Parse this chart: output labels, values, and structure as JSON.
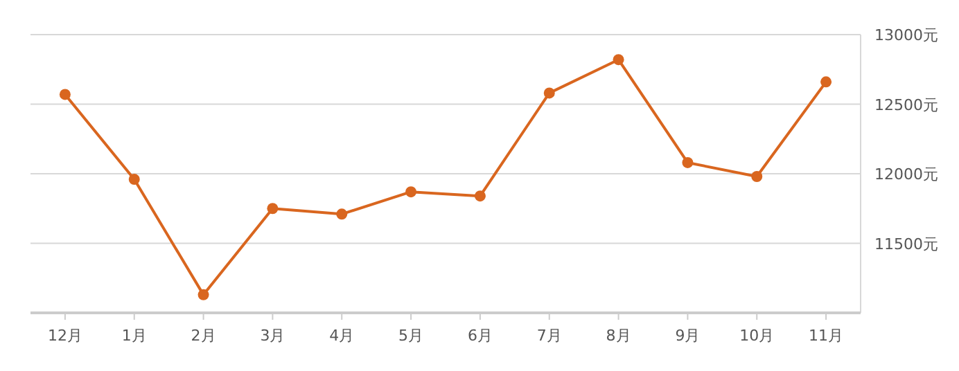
{
  "chart_data": {
    "type": "line",
    "categories": [
      "12月",
      "1月",
      "2月",
      "3月",
      "4月",
      "5月",
      "6月",
      "7月",
      "8月",
      "9月",
      "10月",
      "11月"
    ],
    "series": [
      {
        "color": "#d9661f",
        "values": [
          12570,
          11960,
          11130,
          11750,
          11710,
          11870,
          11840,
          12580,
          12820,
          12080,
          11980,
          12660
        ]
      }
    ],
    "ylim": [
      11000,
      13000
    ],
    "yticks": [
      {
        "value": 11500,
        "label": "11500元"
      },
      {
        "value": 12000,
        "label": "12000元"
      },
      {
        "value": 12500,
        "label": "12500元"
      },
      {
        "value": 13000,
        "label": "13000元"
      }
    ],
    "grid": "y",
    "marker": "circle",
    "line_style": "solid"
  }
}
